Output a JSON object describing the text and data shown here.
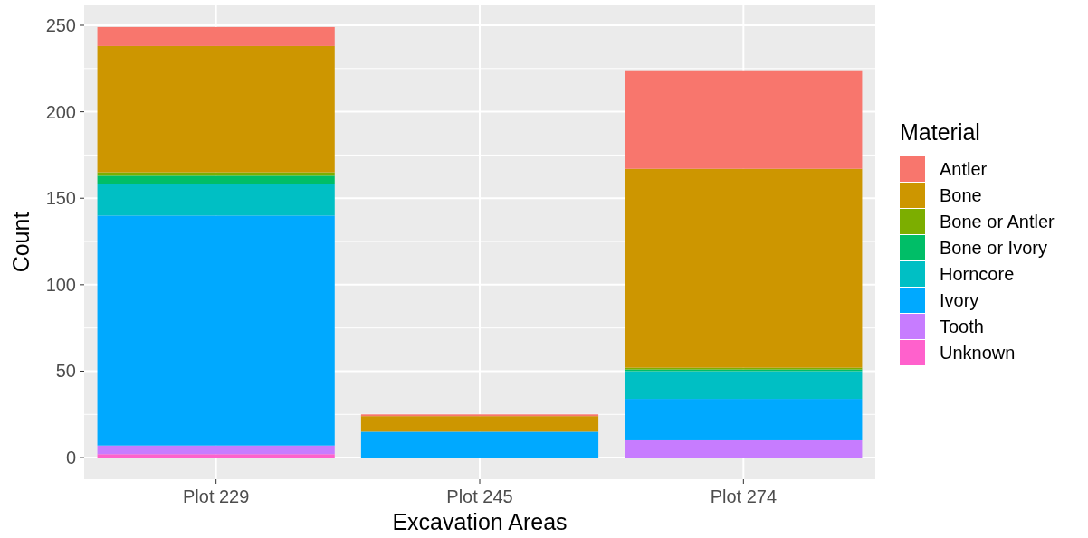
{
  "chart_data": {
    "type": "bar",
    "stacked": true,
    "xlabel": "Excavation Areas",
    "ylabel": "Count",
    "legend_title": "Material",
    "legend": "right",
    "grid": true,
    "categories": [
      "Plot 229",
      "Plot 245",
      "Plot 274"
    ],
    "ylim": [
      -12.5,
      261.5
    ],
    "yticks": [
      0,
      50,
      100,
      150,
      200,
      250
    ],
    "series": [
      {
        "name": "Unknown",
        "color": "#ff61cc",
        "values": [
          2,
          0,
          0
        ]
      },
      {
        "name": "Tooth",
        "color": "#c77cff",
        "values": [
          5,
          0,
          10
        ]
      },
      {
        "name": "Ivory",
        "color": "#00a9ff",
        "values": [
          133,
          15,
          24
        ]
      },
      {
        "name": "Horncore",
        "color": "#00bfc4",
        "values": [
          18,
          0,
          16
        ]
      },
      {
        "name": "Bone or Ivory",
        "color": "#00be67",
        "values": [
          5,
          0,
          1
        ]
      },
      {
        "name": "Bone or Antler",
        "color": "#7cae00",
        "values": [
          2,
          0,
          1
        ]
      },
      {
        "name": "Bone",
        "color": "#cd9600",
        "values": [
          73,
          9,
          115
        ]
      },
      {
        "name": "Antler",
        "color": "#f8766d",
        "values": [
          11,
          1,
          57
        ]
      }
    ]
  }
}
